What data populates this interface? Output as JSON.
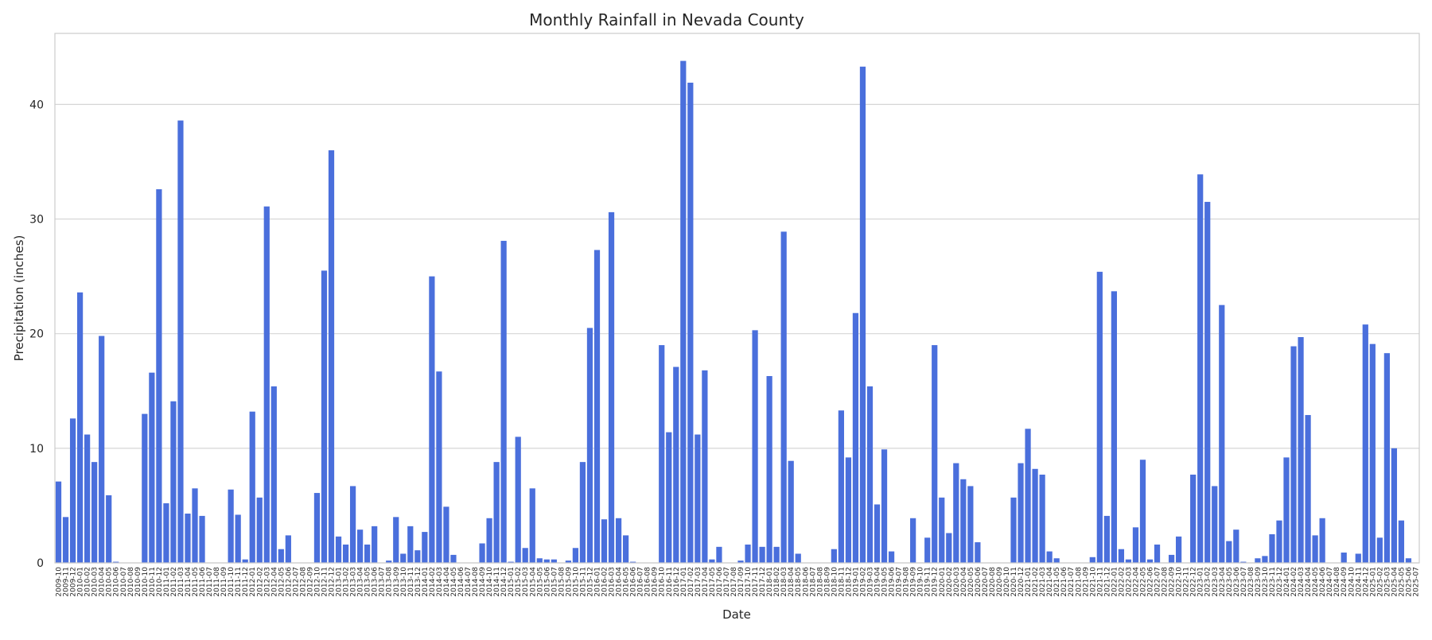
{
  "chart_data": {
    "type": "bar",
    "title": "Monthly Rainfall in Nevada County",
    "xlabel": "Date",
    "ylabel": "Precipitation (inches)",
    "ylim": [
      0,
      46.2
    ],
    "yticks": [
      0,
      10,
      20,
      30,
      40
    ],
    "grid": "horizontal",
    "color": "#4a6fdc",
    "categories": [
      "2009-10",
      "2009-11",
      "2009-12",
      "2010-01",
      "2010-02",
      "2010-03",
      "2010-04",
      "2010-05",
      "2010-06",
      "2010-07",
      "2010-08",
      "2010-09",
      "2010-10",
      "2010-11",
      "2010-12",
      "2011-01",
      "2011-02",
      "2011-03",
      "2011-04",
      "2011-05",
      "2011-06",
      "2011-07",
      "2011-08",
      "2011-09",
      "2011-10",
      "2011-11",
      "2011-12",
      "2012-01",
      "2012-02",
      "2012-03",
      "2012-04",
      "2012-05",
      "2012-06",
      "2012-07",
      "2012-08",
      "2012-09",
      "2012-10",
      "2012-11",
      "2012-12",
      "2013-01",
      "2013-02",
      "2013-03",
      "2013-04",
      "2013-05",
      "2013-06",
      "2013-07",
      "2013-08",
      "2013-09",
      "2013-10",
      "2013-11",
      "2013-12",
      "2014-01",
      "2014-02",
      "2014-03",
      "2014-04",
      "2014-05",
      "2014-06",
      "2014-07",
      "2014-08",
      "2014-09",
      "2014-10",
      "2014-11",
      "2014-12",
      "2015-01",
      "2015-02",
      "2015-03",
      "2015-04",
      "2015-05",
      "2015-06",
      "2015-07",
      "2015-08",
      "2015-09",
      "2015-10",
      "2015-11",
      "2015-12",
      "2016-01",
      "2016-02",
      "2016-03",
      "2016-04",
      "2016-05",
      "2016-06",
      "2016-07",
      "2016-08",
      "2016-09",
      "2016-10",
      "2016-11",
      "2016-12",
      "2017-01",
      "2017-02",
      "2017-03",
      "2017-04",
      "2017-05",
      "2017-06",
      "2017-07",
      "2017-08",
      "2017-09",
      "2017-10",
      "2017-11",
      "2017-12",
      "2018-01",
      "2018-02",
      "2018-03",
      "2018-04",
      "2018-05",
      "2018-06",
      "2018-07",
      "2018-08",
      "2018-09",
      "2018-10",
      "2018-11",
      "2018-12",
      "2019-01",
      "2019-02",
      "2019-03",
      "2019-04",
      "2019-05",
      "2019-06",
      "2019-07",
      "2019-08",
      "2019-09",
      "2019-10",
      "2019-11",
      "2019-12",
      "2020-01",
      "2020-02",
      "2020-03",
      "2020-04",
      "2020-05",
      "2020-06",
      "2020-07",
      "2020-08",
      "2020-09",
      "2020-10",
      "2020-11",
      "2020-12",
      "2021-01",
      "2021-02",
      "2021-03",
      "2021-04",
      "2021-05",
      "2021-06",
      "2021-07",
      "2021-08",
      "2021-09",
      "2021-10",
      "2021-11",
      "2021-12",
      "2022-01",
      "2022-02",
      "2022-03",
      "2022-04",
      "2022-05",
      "2022-06",
      "2022-07",
      "2022-08",
      "2022-09",
      "2022-10",
      "2022-11",
      "2022-12",
      "2023-01",
      "2023-02",
      "2023-03",
      "2023-04",
      "2023-05",
      "2023-06",
      "2023-07",
      "2023-08",
      "2023-09",
      "2023-10",
      "2023-11",
      "2023-12",
      "2024-01",
      "2024-02",
      "2024-03",
      "2024-04",
      "2024-05",
      "2024-06",
      "2024-07",
      "2024-08",
      "2024-09",
      "2024-10",
      "2024-11",
      "2024-12",
      "2025-01",
      "2025-02",
      "2025-03",
      "2025-04",
      "2025-05",
      "2025-06",
      "2025-07"
    ],
    "values": [
      7.1,
      4.0,
      12.6,
      23.6,
      11.2,
      8.8,
      19.8,
      5.9,
      0.1,
      0,
      0,
      0,
      13.0,
      16.6,
      32.6,
      5.2,
      14.1,
      38.6,
      4.3,
      6.5,
      4.1,
      0,
      0,
      0,
      6.4,
      4.2,
      0.3,
      13.2,
      5.7,
      31.1,
      15.4,
      1.2,
      2.4,
      0,
      0,
      0,
      6.1,
      25.5,
      36.0,
      2.3,
      1.6,
      6.7,
      2.9,
      1.6,
      3.2,
      0,
      0.2,
      4.0,
      0.8,
      3.2,
      1.1,
      2.7,
      25.0,
      16.7,
      4.9,
      0.7,
      0,
      0,
      0,
      1.7,
      3.9,
      8.8,
      28.1,
      0.1,
      11.0,
      1.3,
      6.5,
      0.4,
      0.3,
      0.3,
      0,
      0.2,
      1.3,
      8.8,
      20.5,
      27.3,
      3.8,
      30.6,
      3.9,
      2.4,
      0.1,
      0,
      0,
      0,
      19.0,
      11.4,
      17.1,
      43.8,
      41.9,
      11.2,
      16.8,
      0.3,
      1.4,
      0,
      0,
      0.2,
      1.6,
      20.3,
      1.4,
      16.3,
      1.4,
      28.9,
      8.9,
      0.8,
      0,
      0,
      0,
      0,
      1.2,
      13.3,
      9.2,
      21.8,
      43.3,
      15.4,
      5.1,
      9.9,
      1.0,
      0,
      0,
      3.9,
      0,
      2.2,
      19.0,
      5.7,
      2.6,
      8.7,
      7.3,
      6.7,
      1.8,
      0,
      0,
      0,
      0,
      5.7,
      8.7,
      11.7,
      8.2,
      7.7,
      1.0,
      0.4,
      0,
      0,
      0,
      0,
      0.5,
      25.4,
      4.1,
      23.7,
      1.2,
      0.3,
      3.1,
      9.0,
      0.3,
      1.6,
      0,
      0.7,
      2.3,
      0,
      7.7,
      33.9,
      31.5,
      6.7,
      22.5,
      1.9,
      2.9,
      0.1,
      0,
      0.4,
      0.6,
      2.5,
      3.7,
      9.2,
      18.9,
      19.7,
      12.9,
      2.4,
      3.9,
      0,
      0,
      0.9,
      0,
      0.8,
      20.8,
      19.1,
      2.2,
      18.3,
      10.0,
      3.7,
      0.4,
      0
    ]
  }
}
